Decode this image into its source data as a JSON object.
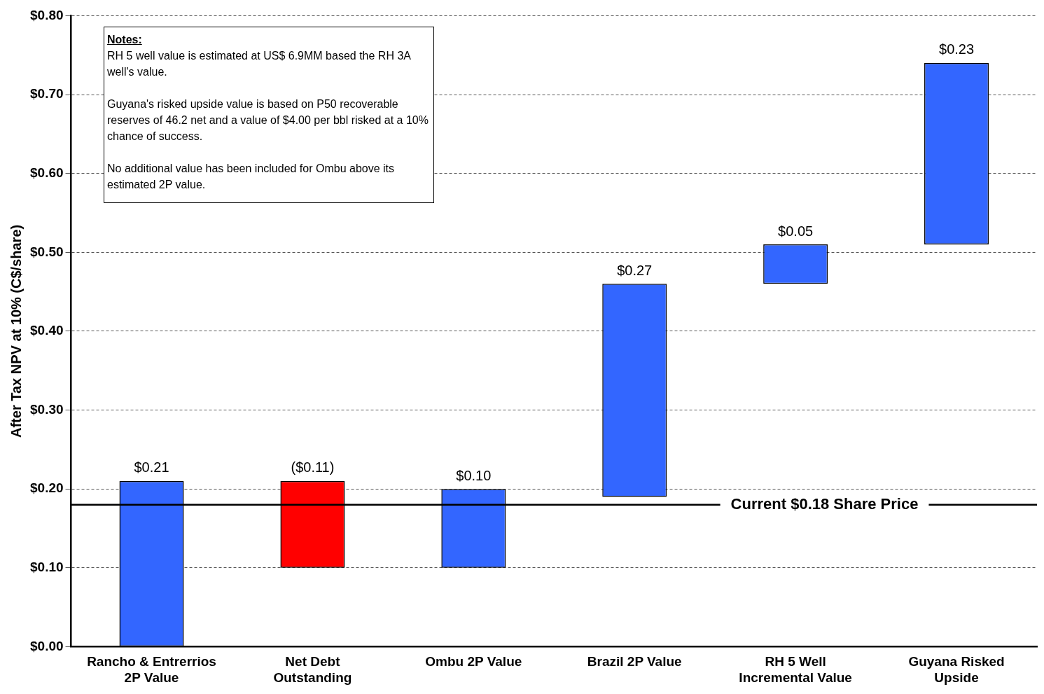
{
  "chart_data": {
    "type": "bar",
    "ylabel": "After Tax NPV at 10% (C$/share)",
    "categories": [
      "Rancho & Entrerrios\n2P Value",
      "Net Debt\nOutstanding",
      "Ombu 2P Value",
      "Brazil 2P Value",
      "RH 5 Well\nIncremental Value",
      "Guyana Risked\nUpside"
    ],
    "values": [
      0.21,
      -0.11,
      0.1,
      0.27,
      0.05,
      0.23
    ],
    "base": [
      0,
      0.21,
      0.1,
      0.19,
      0.46,
      0.51
    ],
    "colors": [
      "#3366ff",
      "#ff0000",
      "#3366ff",
      "#3366ff",
      "#3366ff",
      "#3366ff"
    ],
    "value_labels": [
      "$0.21",
      "($0.11)",
      "$0.10",
      "$0.27",
      "$0.05",
      "$0.23"
    ],
    "ylim": [
      0,
      0.8
    ],
    "yticks": [
      {
        "value": 0,
        "label": "$0.00"
      },
      {
        "value": 0.1,
        "label": "$0.10"
      },
      {
        "value": 0.2,
        "label": "$0.20"
      },
      {
        "value": 0.3,
        "label": "$0.30"
      },
      {
        "value": 0.4,
        "label": "$0.40"
      },
      {
        "value": 0.5,
        "label": "$0.50"
      },
      {
        "value": 0.6,
        "label": "$0.60"
      },
      {
        "value": 0.7,
        "label": "$0.70"
      },
      {
        "value": 0.8,
        "label": "$0.80"
      }
    ],
    "grid": "y",
    "line_style": "dashed",
    "ref_lines": [
      {
        "axis": "y",
        "value": 0.18,
        "label": "Current $0.18 Share Price",
        "color": "#000000"
      }
    ],
    "annotations": [
      "Notes:",
      "RH 5 well value is estimated at US$ 6.9MM based the RH 3A well's value.",
      "Guyana's risked upside value is based on P50 recoverable reserves of 46.2 net and a value of $4.00 per bbl risked at a 10% chance of success.",
      "No additional value has been included for Ombu above its estimated 2P value."
    ]
  }
}
